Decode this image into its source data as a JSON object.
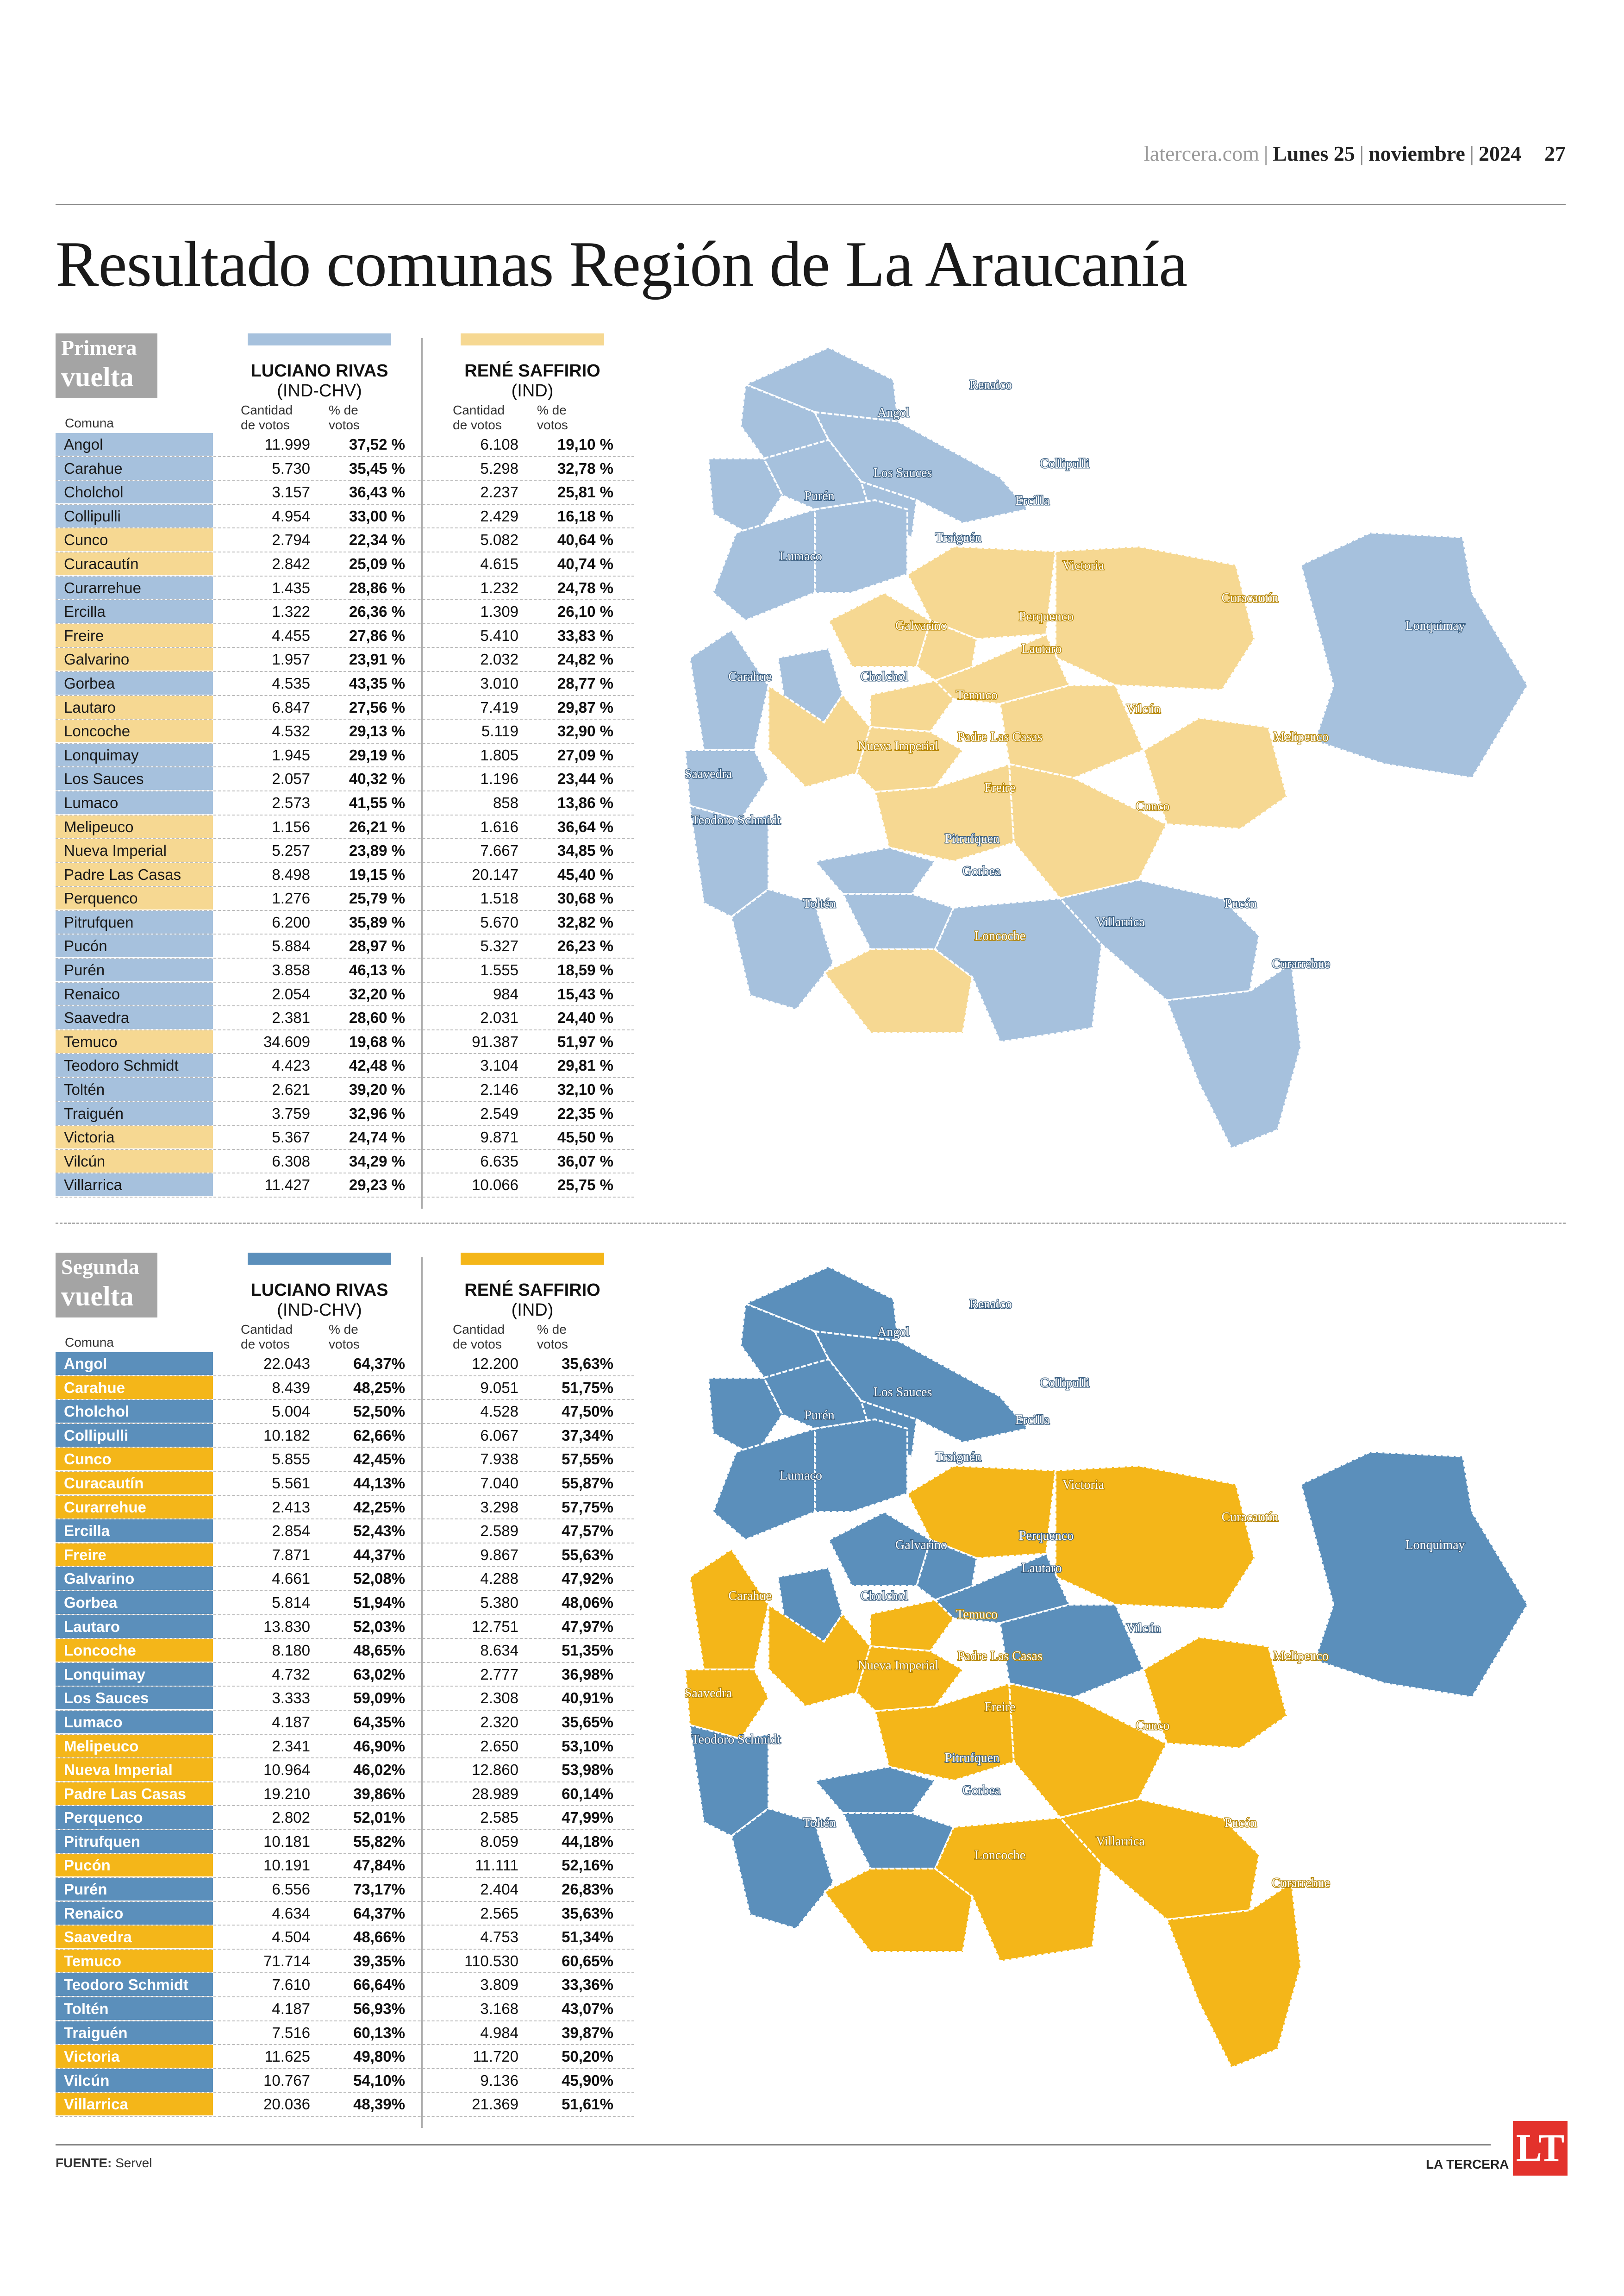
{
  "header": {
    "site": "latercera.com",
    "day": "Lunes 25",
    "month": "noviembre",
    "year": "2024",
    "page": "27"
  },
  "title": "Resultado comunas Región de La Araucanía",
  "columns": {
    "comuna": "Comuna",
    "cantidad": "Cantidad de votos",
    "porcentaje": "% de votos"
  },
  "candidates": [
    {
      "name": "LUCIANO RIVAS",
      "party": "(IND-CHV)"
    },
    {
      "name": "RENÉ SAFFIRIO",
      "party": "(IND)"
    }
  ],
  "colors": {
    "r1_blue": "#a6c1dd",
    "r1_yellow": "#f6d892",
    "r2_blue": "#5b8fbb",
    "r2_yellow": "#f4b619"
  },
  "round1": {
    "label_l1": "Primera",
    "label_l2": "vuelta",
    "rows": [
      {
        "comuna": "Angol",
        "v1": "11.999",
        "p1": "37,52 %",
        "v2": "6.108",
        "p2": "19,10 %",
        "winner": "blue"
      },
      {
        "comuna": "Carahue",
        "v1": "5.730",
        "p1": "35,45 %",
        "v2": "5.298",
        "p2": "32,78 %",
        "winner": "blue"
      },
      {
        "comuna": "Cholchol",
        "v1": "3.157",
        "p1": "36,43 %",
        "v2": "2.237",
        "p2": "25,81 %",
        "winner": "blue"
      },
      {
        "comuna": "Collipulli",
        "v1": "4.954",
        "p1": "33,00 %",
        "v2": "2.429",
        "p2": "16,18 %",
        "winner": "blue"
      },
      {
        "comuna": "Cunco",
        "v1": "2.794",
        "p1": "22,34 %",
        "v2": "5.082",
        "p2": "40,64 %",
        "winner": "yellow"
      },
      {
        "comuna": "Curacautín",
        "v1": "2.842",
        "p1": "25,09 %",
        "v2": "4.615",
        "p2": "40,74 %",
        "winner": "yellow"
      },
      {
        "comuna": "Curarrehue",
        "v1": "1.435",
        "p1": "28,86 %",
        "v2": "1.232",
        "p2": "24,78 %",
        "winner": "blue"
      },
      {
        "comuna": "Ercilla",
        "v1": "1.322",
        "p1": "26,36 %",
        "v2": "1.309",
        "p2": "26,10 %",
        "winner": "blue"
      },
      {
        "comuna": "Freire",
        "v1": "4.455",
        "p1": "27,86 %",
        "v2": "5.410",
        "p2": "33,83 %",
        "winner": "yellow"
      },
      {
        "comuna": "Galvarino",
        "v1": "1.957",
        "p1": "23,91 %",
        "v2": "2.032",
        "p2": "24,82 %",
        "winner": "yellow"
      },
      {
        "comuna": "Gorbea",
        "v1": "4.535",
        "p1": "43,35 %",
        "v2": "3.010",
        "p2": "28,77 %",
        "winner": "blue"
      },
      {
        "comuna": "Lautaro",
        "v1": "6.847",
        "p1": "27,56 %",
        "v2": "7.419",
        "p2": "29,87 %",
        "winner": "yellow"
      },
      {
        "comuna": "Loncoche",
        "v1": "4.532",
        "p1": "29,13 %",
        "v2": "5.119",
        "p2": "32,90 %",
        "winner": "yellow"
      },
      {
        "comuna": "Lonquimay",
        "v1": "1.945",
        "p1": "29,19 %",
        "v2": "1.805",
        "p2": "27,09 %",
        "winner": "blue"
      },
      {
        "comuna": "Los Sauces",
        "v1": "2.057",
        "p1": "40,32 %",
        "v2": "1.196",
        "p2": "23,44 %",
        "winner": "blue"
      },
      {
        "comuna": "Lumaco",
        "v1": "2.573",
        "p1": "41,55 %",
        "v2": "858",
        "p2": "13,86 %",
        "winner": "blue"
      },
      {
        "comuna": "Melipeuco",
        "v1": "1.156",
        "p1": "26,21 %",
        "v2": "1.616",
        "p2": "36,64 %",
        "winner": "yellow"
      },
      {
        "comuna": "Nueva Imperial",
        "v1": "5.257",
        "p1": "23,89 %",
        "v2": "7.667",
        "p2": "34,85 %",
        "winner": "yellow"
      },
      {
        "comuna": "Padre Las Casas",
        "v1": "8.498",
        "p1": "19,15 %",
        "v2": "20.147",
        "p2": "45,40 %",
        "winner": "yellow"
      },
      {
        "comuna": "Perquenco",
        "v1": "1.276",
        "p1": "25,79 %",
        "v2": "1.518",
        "p2": "30,68 %",
        "winner": "yellow"
      },
      {
        "comuna": "Pitrufquen",
        "v1": "6.200",
        "p1": "35,89 %",
        "v2": "5.670",
        "p2": "32,82 %",
        "winner": "blue"
      },
      {
        "comuna": "Pucón",
        "v1": "5.884",
        "p1": "28,97 %",
        "v2": "5.327",
        "p2": "26,23 %",
        "winner": "blue"
      },
      {
        "comuna": "Purén",
        "v1": "3.858",
        "p1": "46,13 %",
        "v2": "1.555",
        "p2": "18,59 %",
        "winner": "blue"
      },
      {
        "comuna": "Renaico",
        "v1": "2.054",
        "p1": "32,20 %",
        "v2": "984",
        "p2": "15,43 %",
        "winner": "blue"
      },
      {
        "comuna": "Saavedra",
        "v1": "2.381",
        "p1": "28,60 %",
        "v2": "2.031",
        "p2": "24,40 %",
        "winner": "blue"
      },
      {
        "comuna": "Temuco",
        "v1": "34.609",
        "p1": "19,68 %",
        "v2": "91.387",
        "p2": "51,97 %",
        "winner": "yellow"
      },
      {
        "comuna": "Teodoro Schmidt",
        "v1": "4.423",
        "p1": "42,48 %",
        "v2": "3.104",
        "p2": "29,81 %",
        "winner": "blue"
      },
      {
        "comuna": "Toltén",
        "v1": "2.621",
        "p1": "39,20 %",
        "v2": "2.146",
        "p2": "32,10 %",
        "winner": "blue"
      },
      {
        "comuna": "Traiguén",
        "v1": "3.759",
        "p1": "32,96 %",
        "v2": "2.549",
        "p2": "22,35 %",
        "winner": "blue"
      },
      {
        "comuna": "Victoria",
        "v1": "5.367",
        "p1": "24,74 %",
        "v2": "9.871",
        "p2": "45,50 %",
        "winner": "yellow"
      },
      {
        "comuna": "Vilcún",
        "v1": "6.308",
        "p1": "34,29 %",
        "v2": "6.635",
        "p2": "36,07 %",
        "winner": "yellow"
      },
      {
        "comuna": "Villarrica",
        "v1": "11.427",
        "p1": "29,23 %",
        "v2": "10.066",
        "p2": "25,75 %",
        "winner": "blue"
      }
    ]
  },
  "round2": {
    "label_l1": "Segunda",
    "label_l2": "vuelta",
    "rows": [
      {
        "comuna": "Angol",
        "v1": "22.043",
        "p1": "64,37%",
        "v2": "12.200",
        "p2": "35,63%",
        "winner": "blue"
      },
      {
        "comuna": "Carahue",
        "v1": "8.439",
        "p1": "48,25%",
        "v2": "9.051",
        "p2": "51,75%",
        "winner": "yellow"
      },
      {
        "comuna": "Cholchol",
        "v1": "5.004",
        "p1": "52,50%",
        "v2": "4.528",
        "p2": "47,50%",
        "winner": "blue"
      },
      {
        "comuna": "Collipulli",
        "v1": "10.182",
        "p1": "62,66%",
        "v2": "6.067",
        "p2": "37,34%",
        "winner": "blue"
      },
      {
        "comuna": "Cunco",
        "v1": "5.855",
        "p1": "42,45%",
        "v2": "7.938",
        "p2": "57,55%",
        "winner": "yellow"
      },
      {
        "comuna": "Curacautín",
        "v1": "5.561",
        "p1": "44,13%",
        "v2": "7.040",
        "p2": "55,87%",
        "winner": "yellow"
      },
      {
        "comuna": "Curarrehue",
        "v1": "2.413",
        "p1": "42,25%",
        "v2": "3.298",
        "p2": "57,75%",
        "winner": "yellow"
      },
      {
        "comuna": "Ercilla",
        "v1": "2.854",
        "p1": "52,43%",
        "v2": "2.589",
        "p2": "47,57%",
        "winner": "blue"
      },
      {
        "comuna": "Freire",
        "v1": "7.871",
        "p1": "44,37%",
        "v2": "9.867",
        "p2": "55,63%",
        "winner": "yellow"
      },
      {
        "comuna": "Galvarino",
        "v1": "4.661",
        "p1": "52,08%",
        "v2": "4.288",
        "p2": "47,92%",
        "winner": "blue"
      },
      {
        "comuna": "Gorbea",
        "v1": "5.814",
        "p1": "51,94%",
        "v2": "5.380",
        "p2": "48,06%",
        "winner": "blue"
      },
      {
        "comuna": "Lautaro",
        "v1": "13.830",
        "p1": "52,03%",
        "v2": "12.751",
        "p2": "47,97%",
        "winner": "blue"
      },
      {
        "comuna": "Loncoche",
        "v1": "8.180",
        "p1": "48,65%",
        "v2": "8.634",
        "p2": "51,35%",
        "winner": "yellow"
      },
      {
        "comuna": "Lonquimay",
        "v1": "4.732",
        "p1": "63,02%",
        "v2": "2.777",
        "p2": "36,98%",
        "winner": "blue"
      },
      {
        "comuna": "Los Sauces",
        "v1": "3.333",
        "p1": "59,09%",
        "v2": "2.308",
        "p2": "40,91%",
        "winner": "blue"
      },
      {
        "comuna": "Lumaco",
        "v1": "4.187",
        "p1": "64,35%",
        "v2": "2.320",
        "p2": "35,65%",
        "winner": "blue"
      },
      {
        "comuna": "Melipeuco",
        "v1": "2.341",
        "p1": "46,90%",
        "v2": "2.650",
        "p2": "53,10%",
        "winner": "yellow"
      },
      {
        "comuna": "Nueva Imperial",
        "v1": "10.964",
        "p1": "46,02%",
        "v2": "12.860",
        "p2": "53,98%",
        "winner": "yellow"
      },
      {
        "comuna": "Padre Las Casas",
        "v1": "19.210",
        "p1": "39,86%",
        "v2": "28.989",
        "p2": "60,14%",
        "winner": "yellow"
      },
      {
        "comuna": "Perquenco",
        "v1": "2.802",
        "p1": "52,01%",
        "v2": "2.585",
        "p2": "47,99%",
        "winner": "blue"
      },
      {
        "comuna": "Pitrufquen",
        "v1": "10.181",
        "p1": "55,82%",
        "v2": "8.059",
        "p2": "44,18%",
        "winner": "blue"
      },
      {
        "comuna": "Pucón",
        "v1": "10.191",
        "p1": "47,84%",
        "v2": "11.111",
        "p2": "52,16%",
        "winner": "yellow"
      },
      {
        "comuna": "Purén",
        "v1": "6.556",
        "p1": "73,17%",
        "v2": "2.404",
        "p2": "26,83%",
        "winner": "blue"
      },
      {
        "comuna": "Renaico",
        "v1": "4.634",
        "p1": "64,37%",
        "v2": "2.565",
        "p2": "35,63%",
        "winner": "blue"
      },
      {
        "comuna": "Saavedra",
        "v1": "4.504",
        "p1": "48,66%",
        "v2": "4.753",
        "p2": "51,34%",
        "winner": "yellow"
      },
      {
        "comuna": "Temuco",
        "v1": "71.714",
        "p1": "39,35%",
        "v2": "110.530",
        "p2": "60,65%",
        "winner": "yellow"
      },
      {
        "comuna": "Teodoro Schmidt",
        "v1": "7.610",
        "p1": "66,64%",
        "v2": "3.809",
        "p2": "33,36%",
        "winner": "blue"
      },
      {
        "comuna": "Toltén",
        "v1": "4.187",
        "p1": "56,93%",
        "v2": "3.168",
        "p2": "43,07%",
        "winner": "blue"
      },
      {
        "comuna": "Traiguén",
        "v1": "7.516",
        "p1": "60,13%",
        "v2": "4.984",
        "p2": "39,87%",
        "winner": "blue"
      },
      {
        "comuna": "Victoria",
        "v1": "11.625",
        "p1": "49,80%",
        "v2": "11.720",
        "p2": "50,20%",
        "winner": "yellow"
      },
      {
        "comuna": "Vilcún",
        "v1": "10.767",
        "p1": "54,10%",
        "v2": "9.136",
        "p2": "45,90%",
        "winner": "blue"
      },
      {
        "comuna": "Villarrica",
        "v1": "20.036",
        "p1": "48,39%",
        "v2": "21.369",
        "p2": "51,61%",
        "winner": "yellow"
      }
    ]
  },
  "map_labels": {
    "renaico": "Renaico",
    "angol": "Angol",
    "los_sauces": "Los Sauces",
    "collipulli": "Collipulli",
    "puren": "Purén",
    "ercilla": "Ercilla",
    "traiguen": "Traiguén",
    "lumaco": "Lumaco",
    "victoria": "Victoria",
    "curacautin": "Curacautín",
    "lonquimay": "Lonquimay",
    "perquenco": "Perquenco",
    "galvarino": "Galvarino",
    "lautaro": "Lautaro",
    "carahue": "Carahue",
    "cholchol": "Cholchol",
    "temuco": "Temuco",
    "vilcun": "Vilcún",
    "nueva_imperial": "Nueva Imperial",
    "padre_las_casas": "Padre Las Casas",
    "melipeuco": "Melipeuco",
    "saavedra": "Saavedra",
    "freire": "Freire",
    "cunco": "Cunco",
    "teodoro_schmidt": "Teodoro Schmidt",
    "pitrufquen": "Pitrufquen",
    "gorbea": "Gorbea",
    "tolten": "Toltén",
    "loncoche": "Loncoche",
    "villarrica": "Villarrica",
    "pucon": "Pucón",
    "curarrehue": "Curarrehue"
  },
  "footer": {
    "source_label": "FUENTE:",
    "source": "Servel",
    "brand": "LA TERCERA",
    "logo": "LT"
  }
}
